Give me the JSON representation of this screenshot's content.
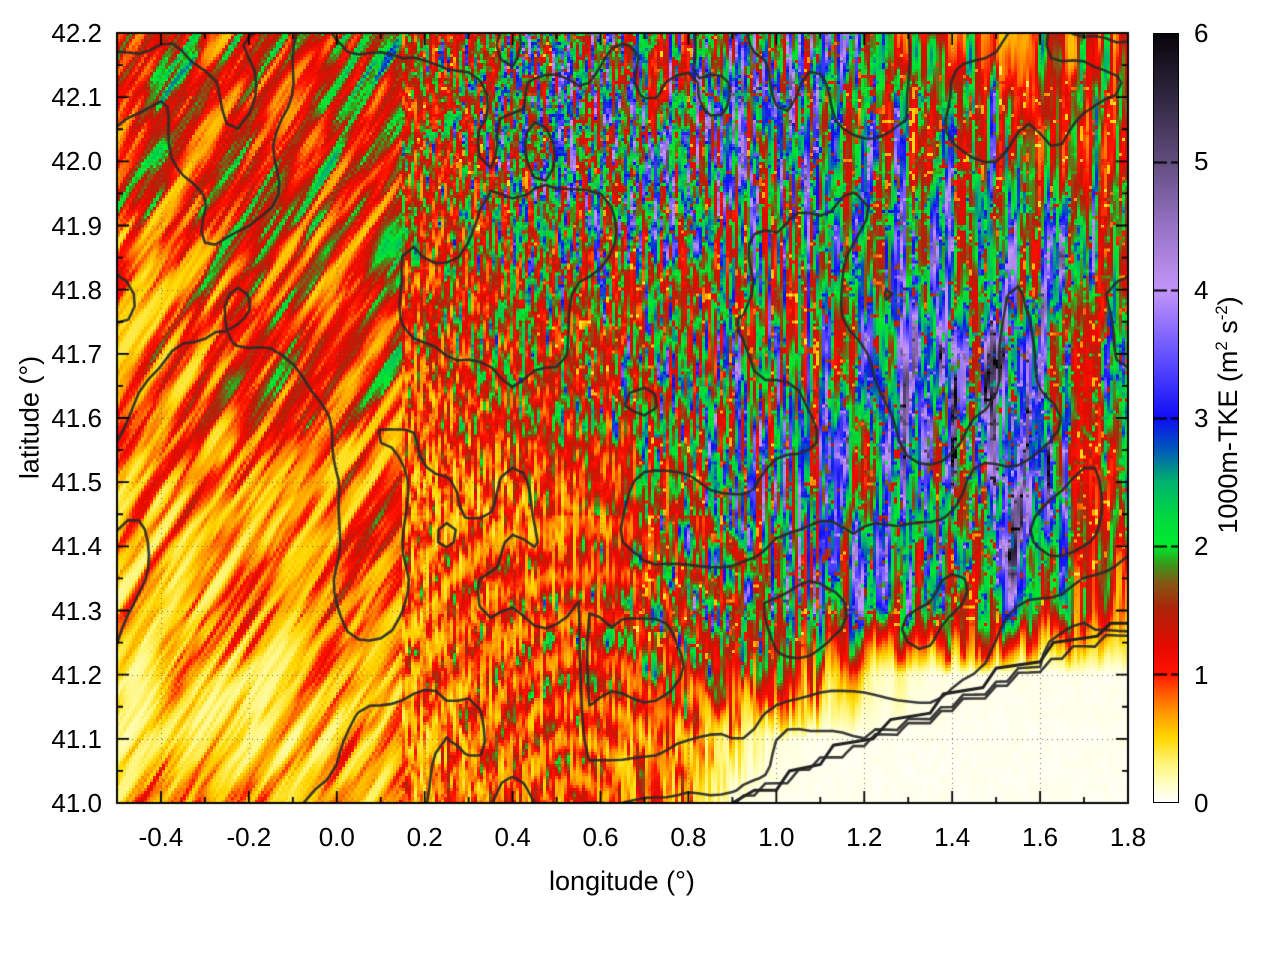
{
  "chart_data": {
    "type": "heatmap",
    "title": "",
    "xlabel": "longitude (°)",
    "ylabel": "latitude (°)",
    "x_range": [
      -0.5,
      1.8
    ],
    "y_range": [
      41.0,
      42.2
    ],
    "x_major_ticks": [
      -0.4,
      -0.2,
      0.0,
      0.2,
      0.4,
      0.6,
      0.8,
      1.0,
      1.2,
      1.4,
      1.6,
      1.8
    ],
    "x_tick_labels": [
      "-0.4",
      "-0.2",
      "0.0",
      "0.2",
      "0.4",
      "0.6",
      "0.8",
      "1.0",
      "1.2",
      "1.4",
      "1.6",
      "1.8"
    ],
    "x_minor_ticks": [
      -0.3,
      -0.1,
      0.1,
      0.3,
      0.5,
      0.7,
      0.9,
      1.1,
      1.3,
      1.5,
      1.7
    ],
    "y_major_ticks": [
      41.0,
      41.1,
      41.2,
      41.3,
      41.4,
      41.5,
      41.6,
      41.7,
      41.8,
      41.9,
      42.0,
      42.1,
      42.2
    ],
    "y_tick_labels": [
      "41.0",
      "41.1",
      "41.2",
      "41.3",
      "41.4",
      "41.5",
      "41.6",
      "41.7",
      "41.8",
      "41.9",
      "42.0",
      "42.1",
      "42.2"
    ],
    "y_minor_ticks": [
      41.05,
      41.15,
      41.25,
      41.35,
      41.45,
      41.55,
      41.65,
      41.75,
      41.85,
      41.95,
      42.05,
      42.15
    ],
    "grid": "dotted",
    "colorbar": {
      "title_parts": {
        "p1": "1000m-TKE (m",
        "s1": "2",
        "p2": " s",
        "s2": "-2",
        "p3": ")"
      },
      "range": [
        0,
        6
      ],
      "tick_values": [
        0,
        1,
        2,
        3,
        4,
        5,
        6
      ],
      "tick_labels": [
        "0",
        "1",
        "2",
        "3",
        "4",
        "5",
        "6"
      ],
      "colormap": [
        [
          0.0,
          "#ffffff"
        ],
        [
          0.12,
          "#ffffcd"
        ],
        [
          0.3,
          "#fff578"
        ],
        [
          0.5,
          "#ffd700"
        ],
        [
          0.7,
          "#ff9600"
        ],
        [
          0.85,
          "#ff5a00"
        ],
        [
          1.0,
          "#ff1400"
        ],
        [
          1.2,
          "#e80a00"
        ],
        [
          1.5,
          "#af230a"
        ],
        [
          1.7,
          "#875514"
        ],
        [
          1.85,
          "#3c9619"
        ],
        [
          2.0,
          "#00eb2d"
        ],
        [
          2.2,
          "#00dc3c"
        ],
        [
          2.5,
          "#00b46e"
        ],
        [
          2.75,
          "#005ab9"
        ],
        [
          3.0,
          "#0f0ff5"
        ],
        [
          3.4,
          "#5546ff"
        ],
        [
          4.0,
          "#c396fa"
        ],
        [
          4.5,
          "#9873c6"
        ],
        [
          5.0,
          "#624e80"
        ],
        [
          5.5,
          "#322842"
        ],
        [
          6.0,
          "#08060c"
        ]
      ]
    },
    "grid_lon": [
      -0.5,
      -0.4,
      -0.3,
      -0.2,
      -0.1,
      0.0,
      0.1,
      0.2,
      0.3,
      0.4,
      0.5,
      0.6,
      0.7,
      0.8,
      0.9,
      1.0,
      1.1,
      1.2,
      1.3,
      1.4,
      1.5,
      1.6,
      1.7,
      1.8
    ],
    "grid_lat_top_to_bottom": [
      42.2,
      42.1,
      42.0,
      41.9,
      41.8,
      41.7,
      41.6,
      41.5,
      41.4,
      41.3,
      41.2,
      41.1,
      41.0
    ],
    "values_rows_top_to_bottom": [
      [
        1.3,
        1.4,
        1.3,
        1.2,
        1.4,
        1.5,
        1.4,
        1.6,
        1.8,
        2.0,
        2.3,
        2.5,
        2.1,
        1.8,
        2.0,
        2.3,
        2.5,
        2.3,
        1.4,
        1.1,
        1.2,
        1.3,
        1.2,
        1.0
      ],
      [
        1.2,
        1.3,
        1.4,
        1.3,
        1.3,
        1.4,
        1.5,
        1.7,
        2.0,
        2.3,
        2.5,
        2.3,
        2.0,
        2.2,
        2.5,
        2.7,
        2.4,
        2.0,
        2.2,
        2.3,
        2.0,
        1.6,
        1.8,
        1.5
      ],
      [
        1.1,
        1.2,
        1.2,
        1.3,
        1.2,
        1.3,
        1.4,
        1.6,
        1.8,
        2.2,
        2.4,
        2.2,
        2.5,
        2.7,
        2.4,
        2.5,
        2.7,
        2.4,
        2.2,
        2.5,
        2.2,
        1.8,
        1.6,
        1.8
      ],
      [
        1.0,
        1.1,
        1.2,
        1.1,
        1.2,
        1.2,
        1.3,
        1.5,
        1.6,
        1.8,
        2.0,
        2.2,
        2.4,
        2.2,
        2.0,
        2.2,
        2.4,
        2.5,
        2.7,
        2.5,
        2.4,
        2.5,
        2.2,
        1.8
      ],
      [
        0.9,
        1.0,
        1.1,
        1.2,
        1.1,
        1.2,
        1.2,
        1.3,
        1.5,
        1.6,
        1.8,
        2.0,
        1.8,
        2.0,
        2.2,
        2.0,
        2.2,
        2.4,
        2.7,
        2.9,
        2.6,
        2.7,
        2.4,
        2.0
      ],
      [
        0.9,
        0.9,
        1.0,
        1.1,
        1.2,
        1.1,
        1.2,
        1.3,
        1.4,
        1.5,
        1.6,
        1.8,
        2.0,
        1.8,
        2.0,
        2.2,
        2.0,
        2.2,
        2.6,
        2.9,
        3.1,
        2.7,
        2.4,
        2.2
      ],
      [
        0.8,
        0.9,
        0.9,
        1.0,
        1.0,
        1.1,
        1.0,
        1.0,
        1.3,
        1.4,
        1.5,
        1.6,
        1.8,
        2.0,
        2.2,
        2.0,
        2.2,
        2.4,
        2.8,
        3.1,
        3.4,
        2.9,
        2.4,
        2.0
      ],
      [
        0.7,
        0.8,
        0.9,
        0.9,
        1.0,
        1.0,
        0.9,
        0.9,
        0.9,
        0.9,
        1.0,
        1.2,
        1.6,
        1.8,
        2.0,
        2.2,
        2.0,
        2.2,
        2.6,
        3.2,
        3.6,
        3.0,
        2.2,
        1.8
      ],
      [
        0.7,
        0.7,
        0.8,
        0.8,
        0.9,
        0.9,
        1.0,
        1.0,
        0.9,
        1.0,
        1.1,
        1.3,
        1.6,
        1.8,
        2.0,
        2.2,
        2.3,
        2.2,
        2.4,
        2.8,
        3.1,
        2.7,
        2.0,
        1.6
      ],
      [
        0.5,
        0.6,
        0.6,
        0.7,
        0.7,
        0.8,
        0.9,
        1.0,
        1.1,
        1.2,
        1.3,
        1.5,
        1.7,
        1.9,
        2.3,
        2.7,
        2.3,
        2.0,
        2.2,
        2.3,
        2.0,
        1.8,
        1.4,
        0.9
      ],
      [
        0.4,
        0.5,
        0.5,
        0.5,
        0.6,
        0.7,
        0.8,
        1.0,
        1.1,
        1.2,
        1.3,
        1.4,
        1.5,
        1.4,
        1.5,
        1.3,
        0.9,
        0.4,
        0.15,
        0.08,
        0.05,
        0.05,
        0.05,
        0.05
      ],
      [
        0.4,
        0.4,
        0.5,
        0.5,
        0.5,
        0.6,
        0.7,
        0.8,
        0.9,
        1.0,
        1.1,
        1.0,
        0.9,
        0.8,
        0.5,
        0.1,
        0.05,
        0.04,
        0.03,
        0.03,
        0.03,
        0.03,
        0.03,
        0.03
      ],
      [
        0.6,
        0.8,
        0.7,
        0.9,
        0.6,
        0.7,
        0.8,
        0.9,
        1.0,
        1.1,
        1.2,
        1.0,
        1.1,
        0.8,
        0.1,
        0.04,
        0.03,
        0.03,
        0.03,
        0.03,
        0.03,
        0.03,
        0.03,
        0.03
      ]
    ],
    "overlay_contour_levels": [
      260,
      520,
      780,
      1040,
      1300
    ],
    "coastline": [
      [
        0.9,
        41.0
      ],
      [
        0.95,
        41.02
      ],
      [
        1.0,
        41.02
      ],
      [
        1.03,
        41.05
      ],
      [
        1.1,
        41.06
      ],
      [
        1.13,
        41.09
      ],
      [
        1.22,
        41.1
      ],
      [
        1.26,
        41.13
      ],
      [
        1.35,
        41.14
      ],
      [
        1.38,
        41.17
      ],
      [
        1.47,
        41.18
      ],
      [
        1.5,
        41.21
      ],
      [
        1.6,
        41.22
      ],
      [
        1.63,
        41.25
      ],
      [
        1.73,
        41.26
      ],
      [
        1.76,
        41.28
      ],
      [
        1.8,
        41.28
      ]
    ]
  }
}
